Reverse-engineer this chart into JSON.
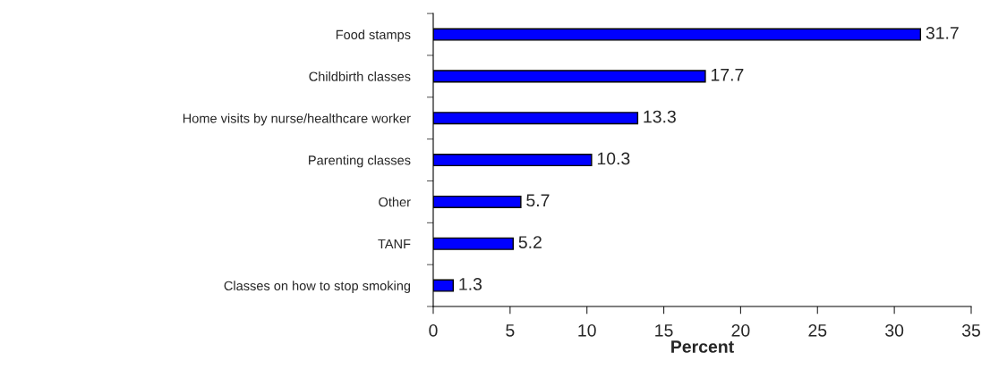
{
  "chart_data": {
    "type": "bar",
    "orientation": "horizontal",
    "xlabel": "Percent",
    "categories": [
      "Food stamps",
      "Childbirth classes",
      "Home visits by nurse/healthcare worker",
      "Parenting classes",
      "Other",
      "TANF",
      "Classes on how to stop smoking"
    ],
    "values": [
      31.7,
      17.7,
      13.3,
      10.3,
      5.7,
      5.2,
      1.3
    ],
    "color": "#0000ff",
    "xlim": [
      0,
      35
    ],
    "xticks": [
      0,
      5,
      10,
      15,
      20,
      25,
      30,
      35
    ],
    "data_labels": true,
    "grid": false,
    "legend": false
  }
}
